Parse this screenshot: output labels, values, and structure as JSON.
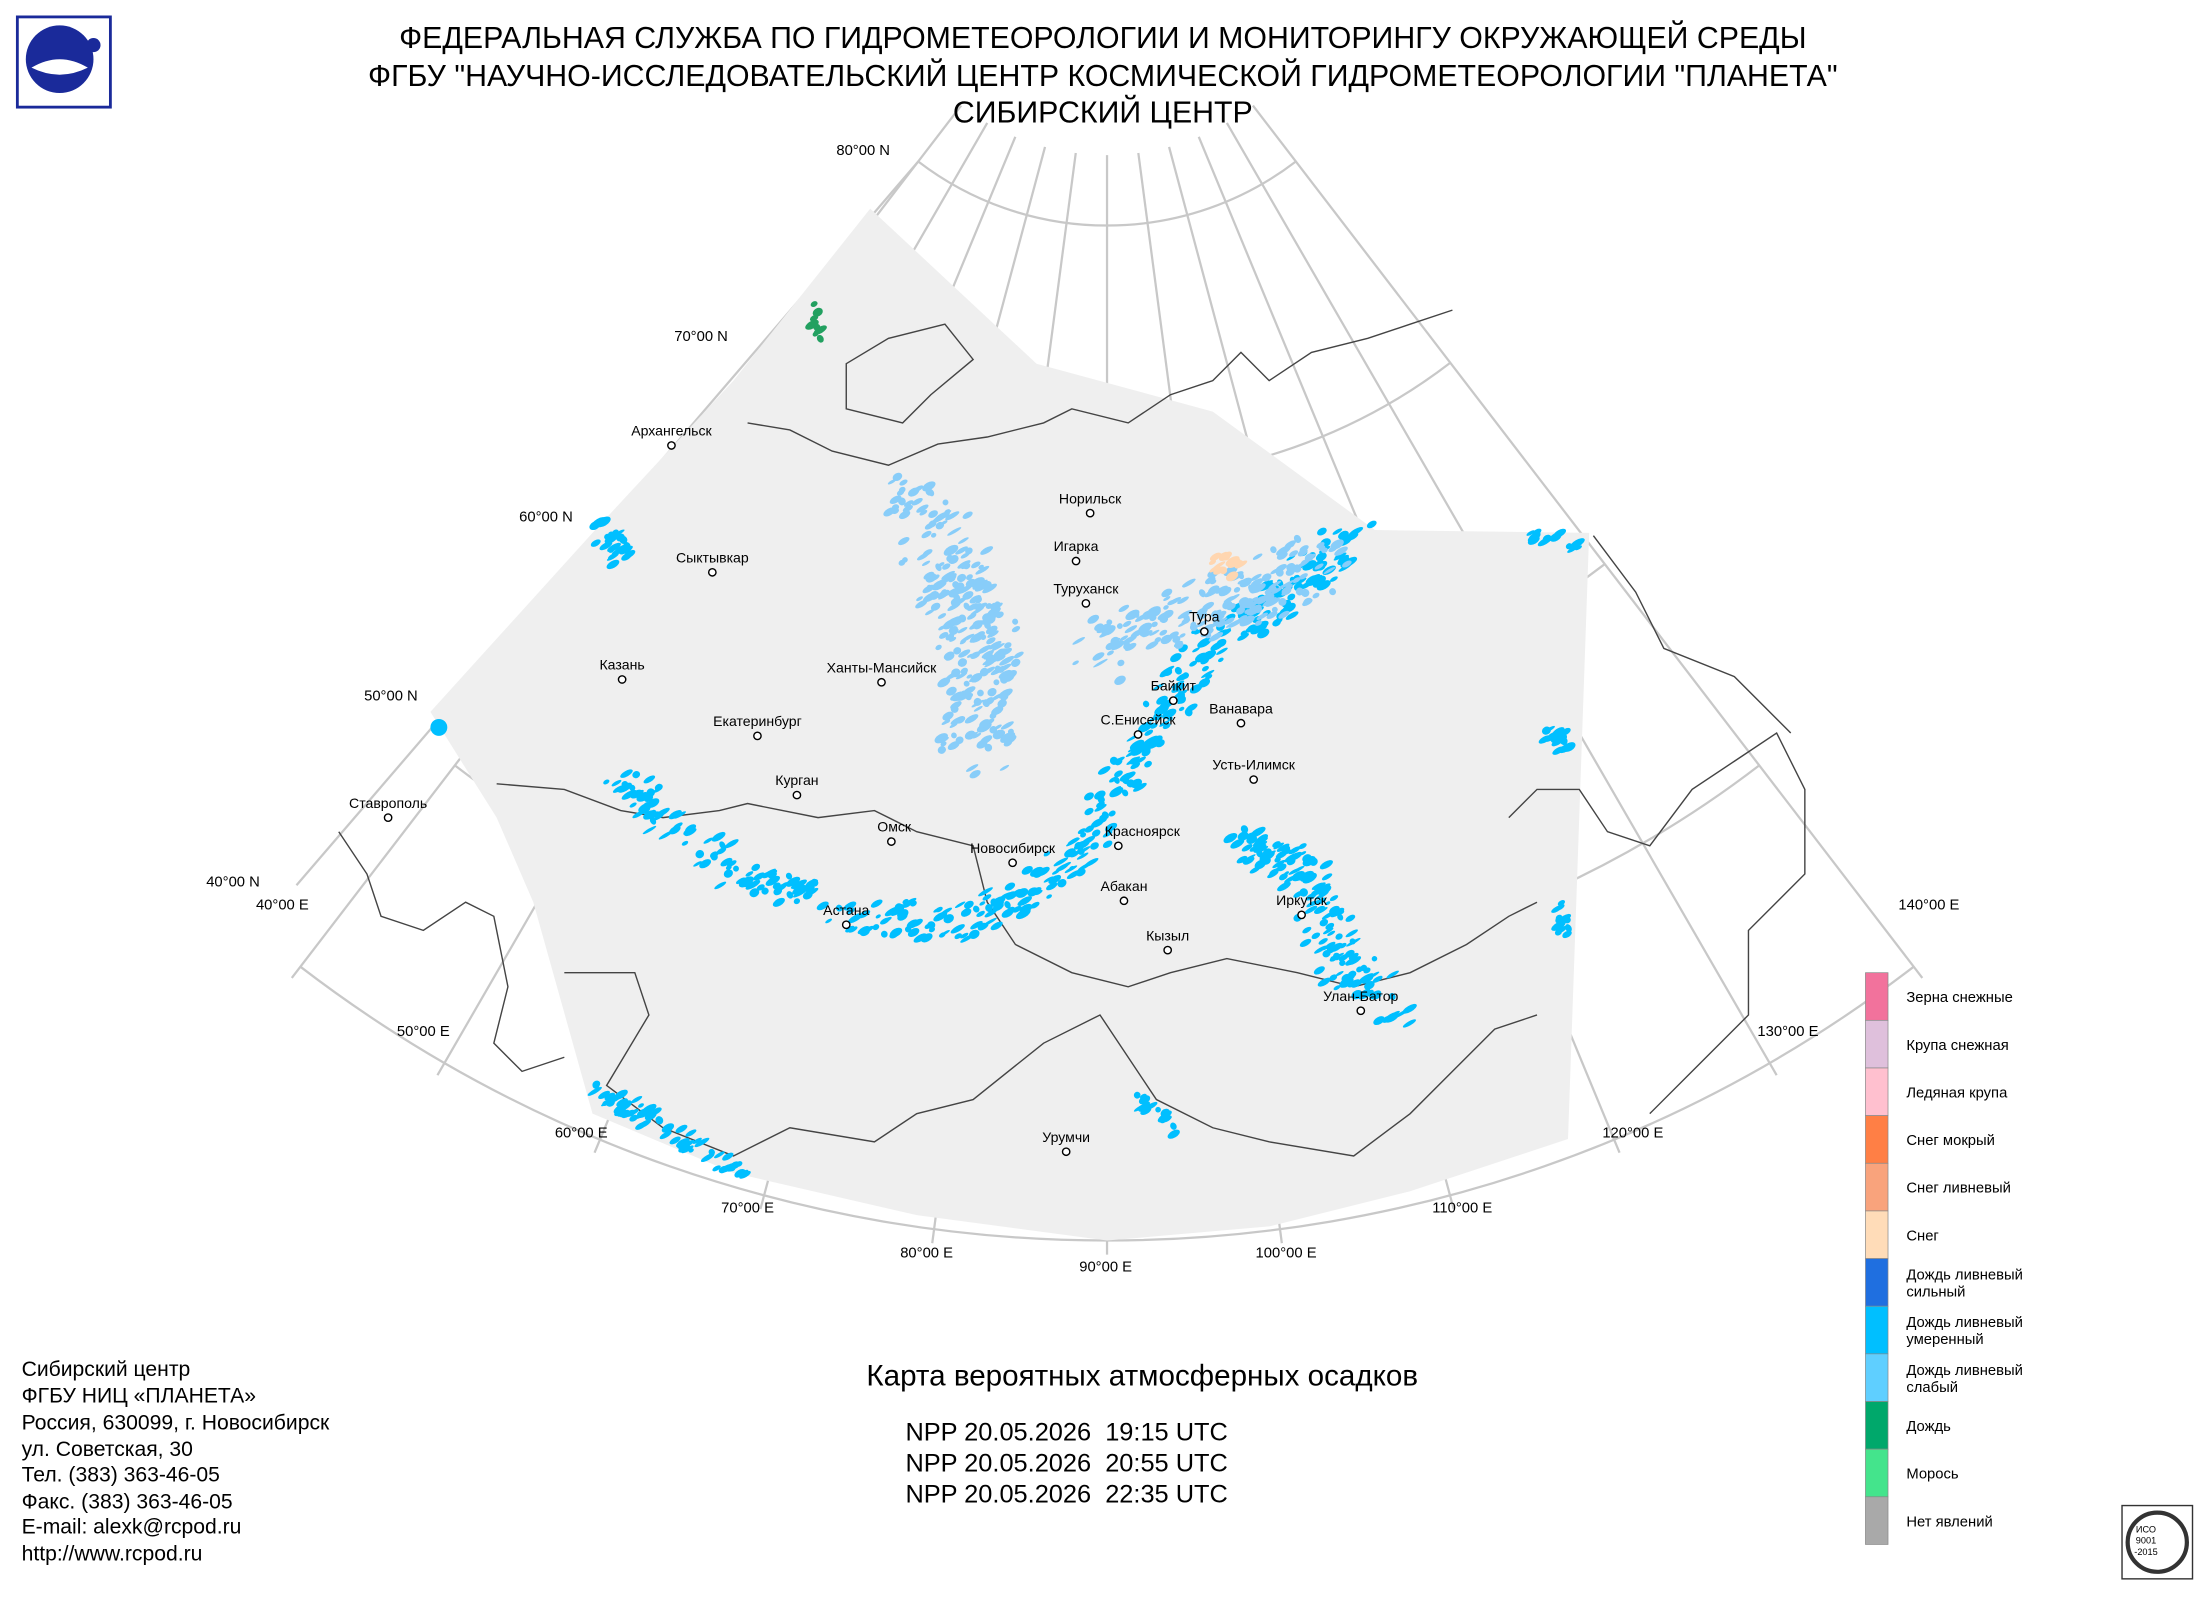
{
  "header": {
    "lines": [
      "ФЕДЕРАЛЬНАЯ СЛУЖБА ПО ГИДРОМЕТЕОРОЛОГИИ И МОНИТОРИНГУ ОКРУЖАЮЩЕЙ СРЕДЫ",
      "ФГБУ \"НАУЧНО-ИССЛЕДОВАТЕЛЬСКИЙ ЦЕНТР КОСМИЧЕСКОЙ ГИДРОМЕТЕОРОЛОГИИ \"ПЛАНЕТА\"",
      "СИБИРСКИЙ ЦЕНТР"
    ]
  },
  "map": {
    "graticule_labels": [
      "80°00 N",
      "70°00 N",
      "60°00 N",
      "50°00 N",
      "40°00 N",
      "40°00 E",
      "50°00 E",
      "60°00 E",
      "70°00 E",
      "80°00 E",
      "90°00 E",
      "100°00 E",
      "110°00 E",
      "120°00 E",
      "130°00 E",
      "140°00 E"
    ],
    "cities": [
      "Архангельск",
      "Сыктывкар",
      "Казань",
      "Екатеринбург",
      "Ставрополь",
      "Курган",
      "Омск",
      "Астана",
      "Новосибирск",
      "Ханты-Мансийск",
      "Норильск",
      "Игарка",
      "Туруханск",
      "Тура",
      "Байкит",
      "С.Енисейск",
      "Ванавара",
      "Усть-Илимск",
      "Красноярск",
      "Абакан",
      "Кызыл",
      "Иркутск",
      "Улан-Батор",
      "Урумчи"
    ]
  },
  "legend": [
    {
      "label": [
        "Зерна снежные"
      ],
      "color": "#f2729c"
    },
    {
      "label": [
        "Крупа снежная"
      ],
      "color": "#dfc0dc"
    },
    {
      "label": [
        "Ледяная крупа"
      ],
      "color": "#ffc0cf"
    },
    {
      "label": [
        "Снег мокрый"
      ],
      "color": "#ff7f45"
    },
    {
      "label": [
        "Снег ливневый"
      ],
      "color": "#f9a37c"
    },
    {
      "label": [
        "Снег"
      ],
      "color": "#ffdcb8"
    },
    {
      "label": [
        "Дождь ливневый",
        "сильный"
      ],
      "color": "#1f6fe0"
    },
    {
      "label": [
        "Дождь ливневый",
        "умеренный"
      ],
      "color": "#00bfff"
    },
    {
      "label": [
        "Дождь ливневый",
        "слабый"
      ],
      "color": "#5fcfff"
    },
    {
      "label": [
        "Дождь"
      ],
      "color": "#00a86b"
    },
    {
      "label": [
        "Морось"
      ],
      "color": "#44e48c"
    },
    {
      "label": [
        "Нет явлений"
      ],
      "color": "#a9a9a9"
    }
  ],
  "footer": {
    "contacts": [
      "Сибирский центр",
      "ФГБУ НИЦ «ПЛАНЕТА»",
      "Россия, 630099, г. Новосибирск",
      "ул. Советская, 30",
      "Тел. (383) 363-46-05",
      "Факс. (383) 363-46-05",
      "E-mail: alexk@rcpod.ru",
      "http://www.rcpod.ru"
    ],
    "title": "Карта вероятных атмосферных осадков",
    "passes": [
      "NPP 20.05.2026  19:15 UTC",
      "NPP 20.05.2026  20:55 UTC",
      "NPP 20.05.2026  22:35 UTC"
    ],
    "iso_stamp": [
      "ИСО",
      "9001",
      "-2015"
    ]
  }
}
